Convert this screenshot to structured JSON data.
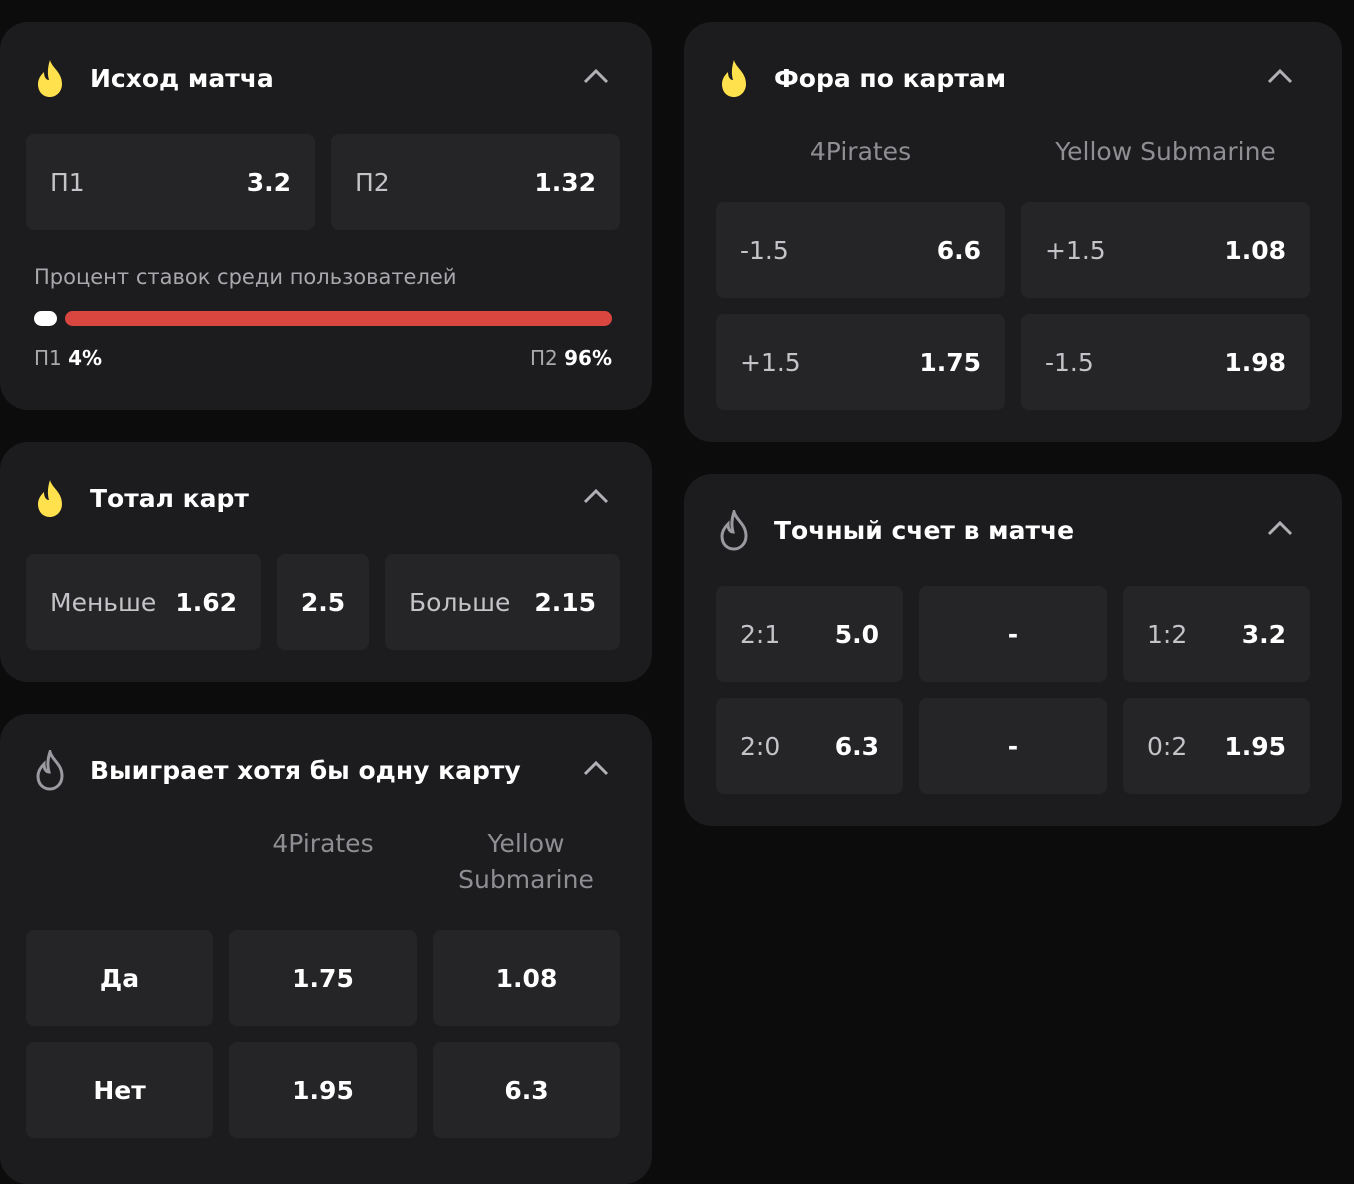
{
  "cards": [
    {
      "title": "Исход матча",
      "outcomes": [
        {
          "label": "П1",
          "odds": "3.2"
        },
        {
          "label": "П2",
          "odds": "1.32"
        }
      ],
      "bets_share": {
        "caption": "Процент ставок среди пользователей",
        "items": [
          {
            "label": "П1",
            "value": 4,
            "value_label": "4%"
          },
          {
            "label": "П2",
            "value": 96,
            "value_label": "96%"
          }
        ]
      }
    },
    {
      "title": "Тотал карт",
      "under": {
        "label": "Меньше",
        "odds": "1.62"
      },
      "line": "2.5",
      "over": {
        "label": "Больше",
        "odds": "2.15"
      }
    },
    {
      "title": "Выиграет хотя бы одну карту",
      "teams": [
        "4Pirates",
        "Yellow Submarine"
      ],
      "rows": [
        {
          "label": "Да",
          "odds": [
            "1.75",
            "1.08"
          ]
        },
        {
          "label": "Нет",
          "odds": [
            "1.95",
            "6.3"
          ]
        }
      ]
    },
    {
      "title": "Фора по картам",
      "teams": [
        "4Pirates",
        "Yellow Submarine"
      ],
      "rows": [
        [
          {
            "label": "-1.5",
            "odds": "6.6"
          },
          {
            "label": "+1.5",
            "odds": "1.08"
          }
        ],
        [
          {
            "label": "+1.5",
            "odds": "1.75"
          },
          {
            "label": "-1.5",
            "odds": "1.98"
          }
        ]
      ]
    },
    {
      "title": "Точный счет в матче",
      "rows": [
        {
          "home": {
            "label": "2:1",
            "odds": "5.0"
          },
          "draw": "-",
          "away": {
            "label": "1:2",
            "odds": "3.2"
          }
        },
        {
          "home": {
            "label": "2:0",
            "odds": "6.3"
          },
          "draw": "-",
          "away": {
            "label": "0:2",
            "odds": "1.95"
          }
        }
      ]
    }
  ]
}
